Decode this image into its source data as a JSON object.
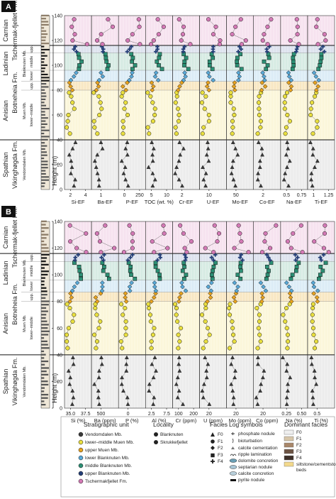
{
  "panels": [
    {
      "label": "A",
      "xlabels": [
        "Si-EF",
        "Ba-EF",
        "P-EF",
        "TOC (wt. %)",
        "Cr-EF",
        "U-EF",
        "Mo-EF",
        "Co-EF",
        "Na-EF",
        "Ti-EF"
      ],
      "xticks": [
        [
          "2",
          "4"
        ],
        [
          "1"
        ],
        [
          "0",
          "250"
        ],
        [
          "5",
          "10"
        ],
        [
          "2"
        ],
        [
          "10"
        ],
        [
          "50"
        ],
        [
          "2"
        ],
        [
          "0.5",
          "0.75"
        ],
        [
          "1",
          "1.25"
        ]
      ]
    },
    {
      "label": "B",
      "xlabels": [
        "Si (%)",
        "Ba (ppm)",
        "P (%)",
        "Al (%)",
        "Cr (ppm)",
        "U (ppm)",
        "Mo (ppm)",
        "Co (ppm)",
        "Na (%)",
        "Ti (%)"
      ],
      "xticks": [
        [
          "35.0",
          "37.5"
        ],
        [
          "500"
        ],
        [
          "0"
        ],
        [
          "2.5",
          "7.5"
        ],
        [
          "100",
          "200"
        ],
        [
          "20"
        ],
        [
          "20"
        ],
        [
          "20"
        ],
        [
          "0.25",
          "0.50"
        ],
        [
          "0.5"
        ]
      ]
    }
  ],
  "stratigraphy": {
    "stages": [
      "Carnian",
      "Ladinian",
      "Anisian",
      "Spathian"
    ],
    "formations": [
      "Tschermak-fjellet Fm.",
      "Botneheia Fm.",
      "Vikinghøgda Fm."
    ],
    "members": [
      "Blanknuten Mb.",
      "Muen Mb.",
      "Vendomdalen Mb."
    ],
    "subunits": [
      "upp.",
      "middle",
      "lower",
      "upp.",
      "lower–middle"
    ]
  },
  "y_axis": {
    "label": "Height (m)",
    "ticks": [
      "0",
      "20",
      "40",
      "60",
      "80",
      "100",
      "120",
      "140"
    ]
  },
  "legend": {
    "strat_title": "Stratigraphic unit",
    "strat_units": [
      {
        "label": "Vendomdalen Mb.",
        "color": "#3a3a3a"
      },
      {
        "label": "lower–middle Muen Mb.",
        "color": "#e9df3f"
      },
      {
        "label": "upper Muen Mb.",
        "color": "#e8a31f"
      },
      {
        "label": "lower Blanknuten Mb.",
        "color": "#58a9d8"
      },
      {
        "label": "middle Blanknuten Mb.",
        "color": "#2c8f74"
      },
      {
        "label": "upper Blanknuten Mb.",
        "color": "#243f78"
      },
      {
        "label": "Tschermakfjellet Fm.",
        "color": "#d47ab6"
      }
    ],
    "locality_title": "Locality",
    "localities": [
      "Blanknuten",
      "Skrukkefjellet"
    ],
    "facies_title": "Facies",
    "facies": [
      "F0",
      "F1",
      "F2",
      "F3",
      "F4"
    ],
    "log_title": "Log symbols",
    "log_symbols": [
      "phosphate nodule",
      "bioturbation",
      "calcite cementation",
      "ripple lamination",
      "dolomite concretion",
      "septarian nodule",
      "calcite concretion",
      "pyrite nodule"
    ],
    "dom_title": "Dominant facies",
    "dom_facies": [
      {
        "label": "F0",
        "color": "#efefef"
      },
      {
        "label": "F1",
        "color": "#d7c6aa"
      },
      {
        "label": "F2",
        "color": "#a8876a"
      },
      {
        "label": "F3",
        "color": "#6c5343"
      },
      {
        "label": "F4",
        "color": "#3d2f28"
      },
      {
        "label": "siltstone/cementstone beds",
        "color": "#f3d98c"
      }
    ]
  },
  "chart_data": [
    {
      "type": "scatter",
      "panel": "A",
      "y_label": "Height (m)",
      "ylim": [
        0,
        140
      ],
      "series": [
        {
          "name": "Vendomdalen Mb.",
          "y": [
            3,
            8,
            13,
            18,
            23,
            28,
            33,
            38
          ]
        },
        {
          "name": "lower–middle Muen Mb.",
          "y": [
            45,
            50,
            55,
            60,
            65,
            70,
            75,
            78
          ]
        },
        {
          "name": "upper Muen Mb.",
          "y": [
            80,
            83,
            86
          ]
        },
        {
          "name": "lower Blanknuten Mb.",
          "y": [
            88,
            91,
            94
          ]
        },
        {
          "name": "middle Blanknuten Mb.",
          "y": [
            97,
            100,
            103,
            106,
            109
          ]
        },
        {
          "name": "upper Blanknuten Mb.",
          "y": [
            111,
            113,
            115
          ]
        },
        {
          "name": "Tschermakfjellet Fm.",
          "y": [
            117,
            120,
            125,
            131,
            137
          ]
        }
      ]
    },
    {
      "type": "scatter",
      "panel": "B",
      "y_label": "Height (m)",
      "ylim": [
        0,
        140
      ],
      "series": [
        {
          "name": "Vendomdalen Mb.",
          "y": [
            3,
            8,
            13,
            18,
            23,
            28,
            33,
            38
          ]
        },
        {
          "name": "lower–middle Muen Mb.",
          "y": [
            45,
            50,
            55,
            60,
            65,
            70,
            75,
            78
          ]
        },
        {
          "name": "upper Muen Mb.",
          "y": [
            80,
            83,
            86
          ]
        },
        {
          "name": "lower Blanknuten Mb.",
          "y": [
            88,
            91,
            94
          ]
        },
        {
          "name": "middle Blanknuten Mb.",
          "y": [
            97,
            100,
            103,
            106,
            109
          ]
        },
        {
          "name": "upper Blanknuten Mb.",
          "y": [
            111,
            113,
            115
          ]
        },
        {
          "name": "Tschermakfjellet Fm.",
          "y": [
            117,
            120,
            125,
            131,
            137
          ]
        }
      ]
    }
  ]
}
